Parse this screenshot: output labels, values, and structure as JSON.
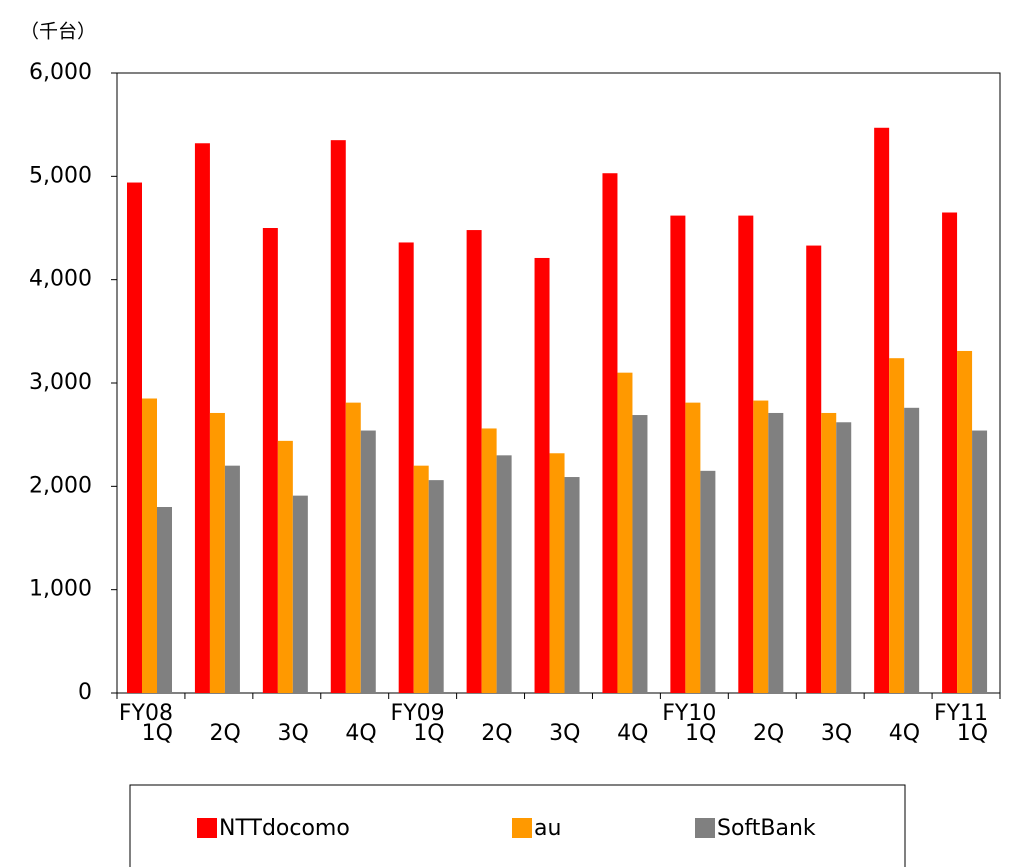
{
  "chart_data": {
    "type": "bar",
    "y_unit_label": "（千台）",
    "categories": [
      "FY08\n1Q",
      "2Q",
      "3Q",
      "4Q",
      "FY09\n1Q",
      "2Q",
      "3Q",
      "4Q",
      "FY10\n1Q",
      "2Q",
      "3Q",
      "4Q",
      "FY11\n1Q"
    ],
    "series": [
      {
        "name": "NTTdocomo",
        "color": "#ff0000",
        "values": [
          4940,
          5320,
          4500,
          5350,
          4360,
          4480,
          4210,
          5030,
          4620,
          4620,
          4330,
          5470,
          4650
        ]
      },
      {
        "name": "au",
        "color": "#ff9900",
        "values": [
          2850,
          2710,
          2440,
          2810,
          2200,
          2560,
          2320,
          3100,
          2810,
          2830,
          2710,
          3240,
          3310
        ]
      },
      {
        "name": "SoftBank",
        "color": "#808080",
        "values": [
          1800,
          2200,
          1910,
          2540,
          2060,
          2300,
          2090,
          2690,
          2150,
          2710,
          2620,
          2760,
          2540
        ]
      }
    ],
    "ylim": [
      0,
      6000
    ],
    "yticks": [
      0,
      {
        "value": 1000,
        "label": "1,000"
      },
      {
        "value": 2000,
        "label": "2,000"
      },
      {
        "value": 3000,
        "label": "3,000"
      },
      {
        "value": 4000,
        "label": "4,000"
      },
      {
        "value": 5000,
        "label": "5,000"
      },
      {
        "value": 6000,
        "label": "6,000"
      }
    ],
    "grid": false,
    "legend": "bottom"
  }
}
